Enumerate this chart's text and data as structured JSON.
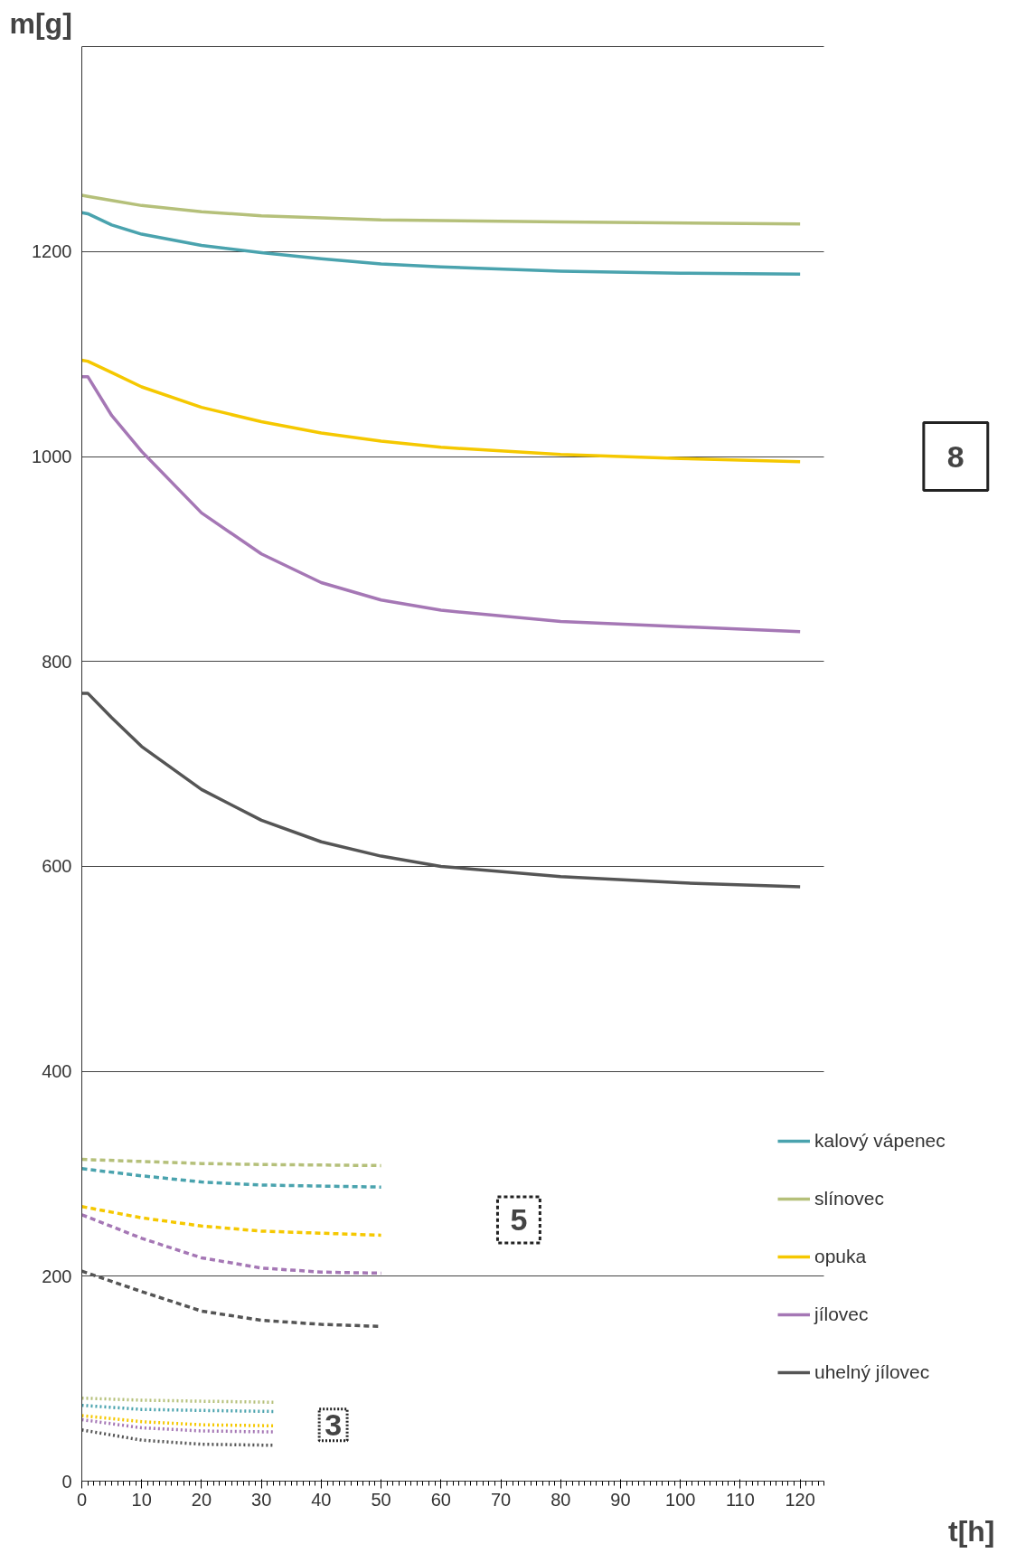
{
  "chart_data": {
    "type": "line",
    "xlabel": "t[h]",
    "ylabel": "m[g]",
    "xlim": [
      0,
      124
    ],
    "ylim": [
      0,
      1400
    ],
    "xticks": [
      0,
      10,
      20,
      30,
      40,
      50,
      60,
      70,
      80,
      90,
      100,
      110,
      120
    ],
    "yticks": [
      0,
      200,
      400,
      600,
      800,
      1000,
      1200,
      {
        "value": 1400,
        "label": null
      }
    ],
    "grid": "y",
    "legend": "right",
    "marker": "none",
    "annotations": [
      "8",
      "5",
      "3"
    ],
    "series": [
      {
        "name": "kalový vápenec",
        "color": "#4aa3ae",
        "line_style": "solid",
        "x": [
          0,
          1,
          5,
          10,
          20,
          30,
          40,
          50,
          60,
          80,
          100,
          120
        ],
        "values": [
          1238,
          1237,
          1226,
          1217,
          1206,
          1199,
          1193,
          1188,
          1185,
          1181,
          1179,
          1178
        ]
      },
      {
        "name": "slínovec",
        "color": "#b5c07a",
        "line_style": "solid",
        "x": [
          0,
          1,
          5,
          10,
          20,
          30,
          50,
          80,
          120
        ],
        "values": [
          1255,
          1254,
          1250,
          1245,
          1239,
          1235,
          1231,
          1229,
          1227
        ]
      },
      {
        "name": "opuka",
        "color": "#f5c800",
        "line_style": "solid",
        "x": [
          0,
          1,
          5,
          10,
          20,
          30,
          40,
          50,
          60,
          80,
          100,
          120
        ],
        "values": [
          1094,
          1093,
          1082,
          1068,
          1048,
          1034,
          1023,
          1015,
          1009,
          1002,
          998,
          995
        ]
      },
      {
        "name": "jílovec",
        "color": "#a577b5",
        "line_style": "solid",
        "x": [
          0,
          1,
          5,
          10,
          20,
          30,
          40,
          50,
          60,
          80,
          100,
          120
        ],
        "values": [
          1078,
          1078,
          1040,
          1005,
          945,
          905,
          877,
          860,
          850,
          839,
          834,
          829
        ]
      },
      {
        "name": "uhelný jílovec",
        "color": "#555555",
        "line_style": "solid",
        "x": [
          0,
          1,
          5,
          10,
          20,
          30,
          40,
          50,
          60,
          80,
          100,
          120
        ],
        "values": [
          769,
          769,
          745,
          717,
          675,
          645,
          624,
          610,
          600,
          590,
          584,
          580
        ]
      },
      {
        "color": "#b5c07a",
        "line_style": "dashed",
        "x": [
          0,
          10,
          20,
          30,
          50
        ],
        "values": [
          314,
          312,
          310,
          309,
          308
        ]
      },
      {
        "color": "#4aa3ae",
        "line_style": "dashed",
        "x": [
          0,
          10,
          20,
          30,
          40,
          50
        ],
        "values": [
          305,
          298,
          292,
          289,
          288,
          287
        ]
      },
      {
        "color": "#f5c800",
        "line_style": "dashed",
        "x": [
          0,
          10,
          20,
          30,
          40,
          50
        ],
        "values": [
          268,
          257,
          249,
          244,
          242,
          240
        ]
      },
      {
        "color": "#a577b5",
        "line_style": "dashed",
        "x": [
          0,
          10,
          20,
          30,
          40,
          50
        ],
        "values": [
          260,
          237,
          218,
          208,
          204,
          203
        ]
      },
      {
        "color": "#555555",
        "line_style": "dashed",
        "x": [
          0,
          10,
          20,
          30,
          40,
          50
        ],
        "values": [
          205,
          185,
          166,
          157,
          153,
          151
        ]
      },
      {
        "color": "#b5c07a",
        "line_style": "dotted",
        "x": [
          0,
          10,
          20,
          32
        ],
        "values": [
          81,
          79,
          78,
          77
        ]
      },
      {
        "color": "#4aa3ae",
        "line_style": "dotted",
        "x": [
          0,
          10,
          20,
          32
        ],
        "values": [
          74,
          70,
          69,
          68
        ]
      },
      {
        "color": "#f5c800",
        "line_style": "dotted",
        "x": [
          0,
          10,
          20,
          32
        ],
        "values": [
          64,
          58,
          55,
          54
        ]
      },
      {
        "color": "#a577b5",
        "line_style": "dotted",
        "x": [
          0,
          10,
          20,
          32
        ],
        "values": [
          60,
          52,
          49,
          48
        ]
      },
      {
        "color": "#555555",
        "line_style": "dotted",
        "x": [
          0,
          10,
          20,
          32
        ],
        "values": [
          50,
          40,
          36,
          35
        ]
      }
    ]
  }
}
